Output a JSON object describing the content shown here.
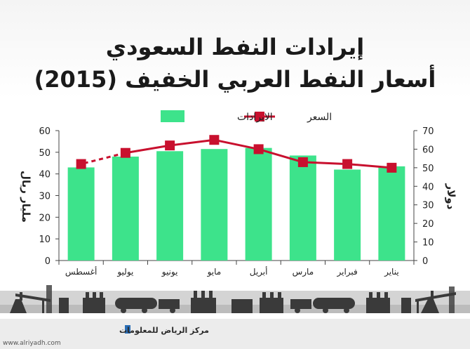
{
  "chart_data": {
    "type": "bar",
    "title": "إيرادات النفط السعودي",
    "subtitle": "أسعار النفط العربي الخفيف (2015)",
    "categories": [
      "يناير",
      "فبراير",
      "مارس",
      "أبريل",
      "مايو",
      "يونيو",
      "يوليو",
      "أغسطس"
    ],
    "series": [
      {
        "name": "الايرادات",
        "type": "bar",
        "axis": "left",
        "color": "#3de38b",
        "values": [
          43.5,
          42,
          48.5,
          52,
          51.5,
          50.5,
          48,
          43
        ]
      },
      {
        "name": "السعر",
        "type": "line",
        "axis": "right",
        "color": "#c8102e",
        "values": [
          50,
          52,
          53,
          60,
          65,
          62,
          58,
          52
        ],
        "dashed_last_segment": true
      }
    ],
    "ylabel_left": "مليار ريال",
    "ylabel_right": "دولار",
    "ylim_left": [
      0,
      60
    ],
    "yticks_left": [
      0,
      10,
      20,
      30,
      40,
      50,
      60
    ],
    "ylim_right": [
      0,
      70
    ],
    "yticks_right": [
      0,
      10,
      20,
      30,
      40,
      50,
      60,
      70
    ],
    "legend_position": "top-center",
    "grid": false
  },
  "footer": {
    "brand": "مركز الرياض للمعلومات",
    "url": "www.alriyadh.com"
  },
  "colors": {
    "bar": "#3de38b",
    "line": "#c8102e",
    "silhouette": "#3a3a3a",
    "strip": "#d4d4d4",
    "footer_bg": "#ececec"
  }
}
